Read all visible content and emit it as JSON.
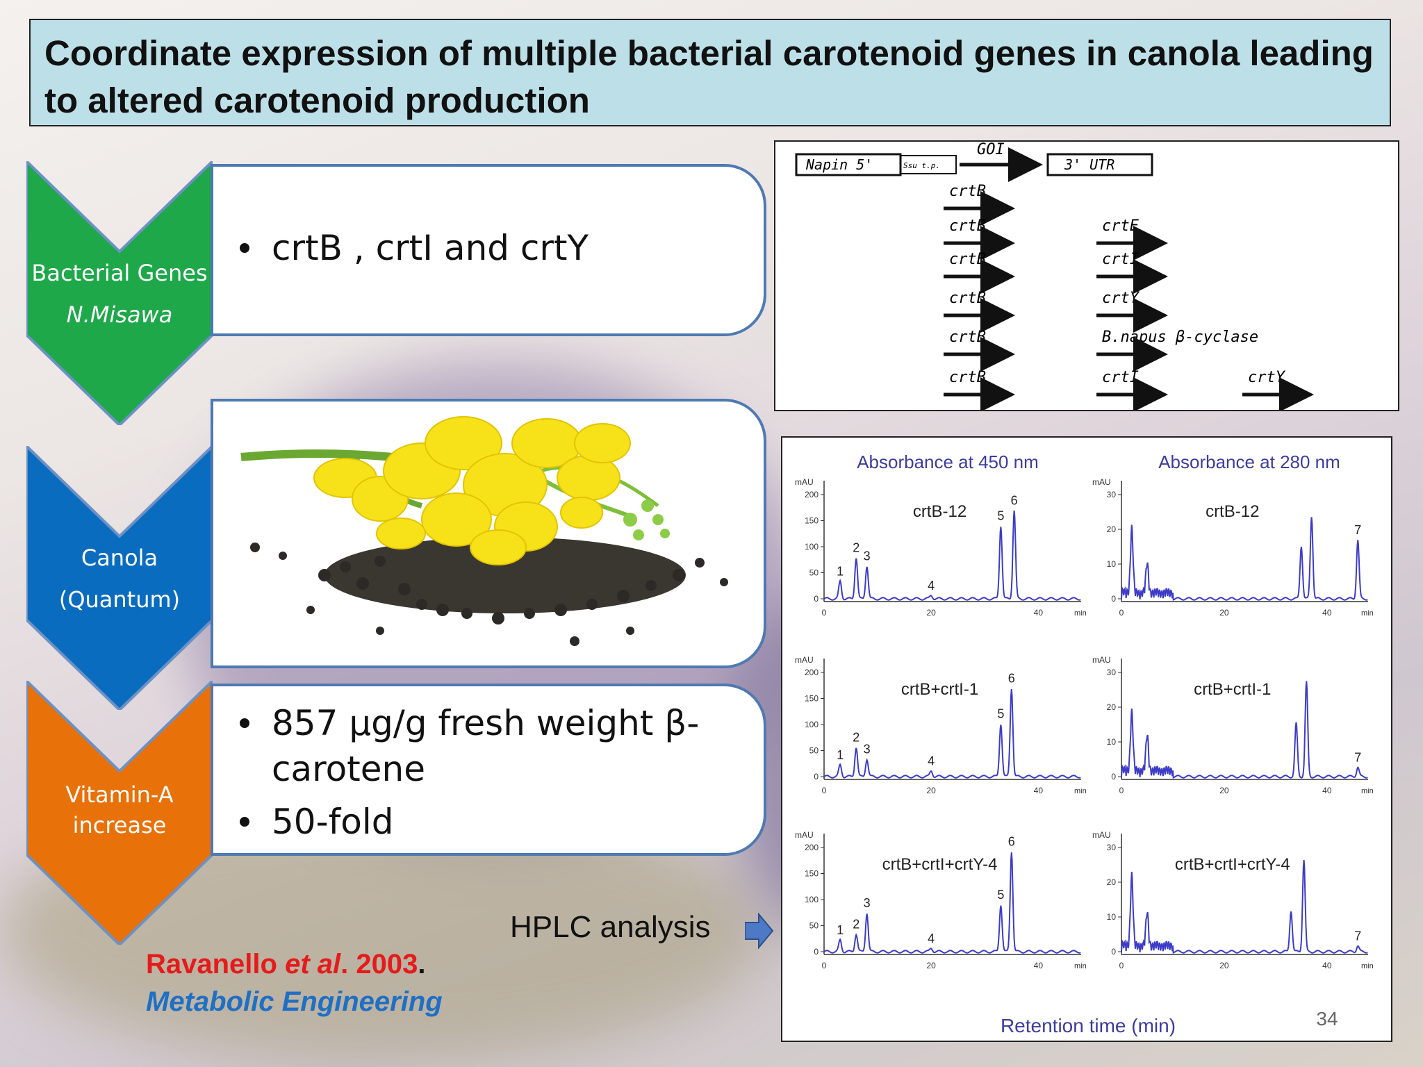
{
  "title": "Coordinate expression of multiple bacterial carotenoid genes in canola leading to altered carotenoid production",
  "steps": [
    {
      "label_line1": "Bacterial Genes",
      "label_line2": "N.Misawa",
      "color": "#1ea84a"
    },
    {
      "label_line1": "Canola",
      "label_line2": "(Quantum)",
      "color": "#0a6cbf"
    },
    {
      "label_line1": "Vitamin-A",
      "label_line2": "increase",
      "color": "#e8710a"
    }
  ],
  "panel1": {
    "bullet1": "crtB , crtI and crtY"
  },
  "panel3": {
    "bullet1_line1": "857 µg/g fresh weight β-",
    "bullet1_line2": "carotene",
    "bullet2": "50-fold"
  },
  "construct": {
    "napin": "Napin 5'",
    "ssu": "Ssu t.p.",
    "goi": "GOI",
    "utr": "3' UTR",
    "rows": [
      [
        "crtB"
      ],
      [
        "crtB",
        "crtE"
      ],
      [
        "crtB",
        "crtI"
      ],
      [
        "crtB",
        "crtY"
      ],
      [
        "crtB",
        "B.napus β-cyclase"
      ],
      [
        "crtB",
        "crtI",
        "crtY"
      ]
    ]
  },
  "hplc": {
    "col1_title": "Absorbance at 450 nm",
    "col2_title": "Absorbance at 280 nm",
    "unit": "mAU",
    "xunit": "min",
    "xlabel": "Retention time (min)",
    "samples": [
      "crtB-12",
      "crtB+crtI-1",
      "crtB+crtI+crtY-4"
    ],
    "left_yticks": [
      "0",
      "50",
      "100",
      "150",
      "200"
    ],
    "right_yticks": [
      "0",
      "10",
      "20",
      "30"
    ],
    "xticks": [
      "0",
      "20",
      "40"
    ],
    "peak_labels": [
      "1",
      "2",
      "3",
      "4",
      "5",
      "6",
      "7"
    ]
  },
  "hplc_caption": "HPLC analysis",
  "citation": {
    "author": "Ravanello",
    "etal": "et al",
    "year": ". 2003",
    "period": ".",
    "journal": "Metabolic Engineering"
  },
  "page_number": "34"
}
